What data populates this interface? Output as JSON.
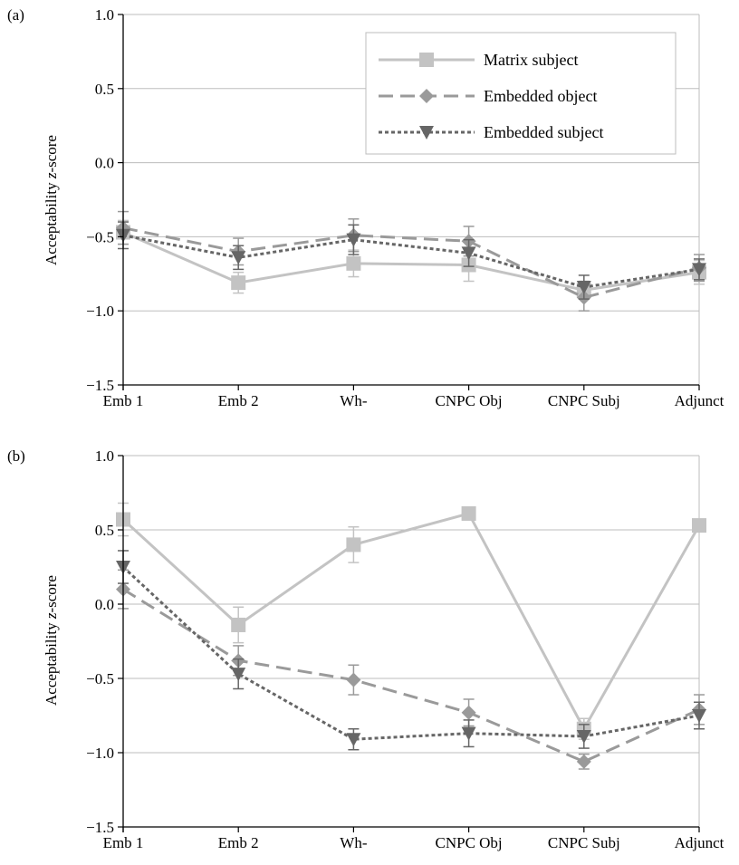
{
  "figure": {
    "colors": {
      "matrix": "#c3c3c3",
      "embedded_object": "#9a9a9a",
      "embedded_subject": "#666666",
      "gridline": "#bdbdbd",
      "axis": "#000000"
    }
  },
  "chart_data": [
    {
      "type": "line",
      "panel_label": "(a)",
      "ylabel_pre": "Acceptability ",
      "ylabel_italic": "z",
      "ylabel_post": "-score",
      "categories": [
        "Emb 1",
        "Emb 2",
        "Wh-",
        "CNPC Obj",
        "CNPC Subj",
        "Adjunct"
      ],
      "ylim": [
        -1.5,
        1.0
      ],
      "yticks": [
        "1.0",
        "0.5",
        "0.0",
        "−0.5",
        "−1.0",
        "−1.5"
      ],
      "grid": true,
      "legend_position": "top-right",
      "series": [
        {
          "name": "Matrix subject",
          "marker": "square",
          "dash": "solid",
          "values": [
            -0.47,
            -0.81,
            -0.68,
            -0.69,
            -0.86,
            -0.74
          ],
          "errors": [
            0.08,
            0.07,
            0.09,
            0.11,
            0.06,
            0.08
          ]
        },
        {
          "name": "Embedded object",
          "marker": "diamond",
          "dash": "long-dash",
          "values": [
            -0.44,
            -0.6,
            -0.49,
            -0.53,
            -0.91,
            -0.71
          ],
          "errors": [
            0.11,
            0.09,
            0.11,
            0.1,
            0.09,
            0.09
          ]
        },
        {
          "name": "Embedded subject",
          "marker": "triangle-down",
          "dash": "dotted",
          "values": [
            -0.49,
            -0.64,
            -0.52,
            -0.61,
            -0.84,
            -0.72
          ],
          "errors": [
            0.09,
            0.08,
            0.1,
            0.09,
            0.08,
            0.07
          ]
        }
      ]
    },
    {
      "type": "line",
      "panel_label": "(b)",
      "ylabel_pre": "Acceptability ",
      "ylabel_italic": "z",
      "ylabel_post": "-score",
      "categories": [
        "Emb 1",
        "Emb 2",
        "Wh-",
        "CNPC Obj",
        "CNPC Subj",
        "Adjunct"
      ],
      "ylim": [
        -1.5,
        1.0
      ],
      "yticks": [
        "1.0",
        "0.5",
        "0.0",
        "−0.5",
        "−1.0",
        "−1.5"
      ],
      "grid": true,
      "legend_position": "none",
      "series": [
        {
          "name": "Matrix subject",
          "marker": "square",
          "dash": "solid",
          "values": [
            0.57,
            -0.14,
            0.4,
            0.61,
            -0.84,
            0.53
          ],
          "errors": [
            0.11,
            0.12,
            0.12,
            0.03,
            0.07,
            0.03
          ]
        },
        {
          "name": "Embedded object",
          "marker": "diamond",
          "dash": "long-dash",
          "values": [
            0.1,
            -0.38,
            -0.51,
            -0.73,
            -1.06,
            -0.71
          ],
          "errors": [
            0.13,
            0.1,
            0.1,
            0.09,
            0.05,
            0.1
          ]
        },
        {
          "name": "Embedded subject",
          "marker": "triangle-down",
          "dash": "dotted",
          "values": [
            0.25,
            -0.47,
            -0.91,
            -0.87,
            -0.89,
            -0.75
          ],
          "errors": [
            0.11,
            0.1,
            0.07,
            0.09,
            0.08,
            0.09
          ]
        }
      ]
    }
  ]
}
